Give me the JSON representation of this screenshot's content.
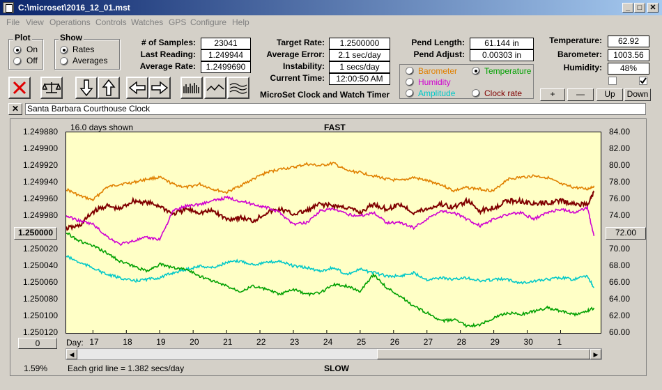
{
  "window": {
    "title": "C:\\microset\\2016_12_01.mst"
  },
  "menu": [
    "File",
    "View",
    "Operations",
    "Controls",
    "Watches",
    "GPS",
    "Configure",
    "Help"
  ],
  "plot_group": {
    "title": "Plot",
    "on": "On",
    "off": "Off",
    "selected": "On"
  },
  "show_group": {
    "title": "Show",
    "rates": "Rates",
    "averages": "Averages",
    "selected": "Rates"
  },
  "stats": {
    "samples_label": "# of Samples:",
    "samples": "23041",
    "last_label": "Last Reading:",
    "last": "1.249944",
    "avg_label": "Average Rate:",
    "avg": "1.2499690",
    "target_label": "Target Rate:",
    "target": "1.2500000",
    "avgerr_label": "Average Error:",
    "avgerr": "2.1 sec/day",
    "instab_label": "Instability:",
    "instab": "1 secs/day",
    "time_label": "Current Time:",
    "time": "12:00:50 AM",
    "pend_len_label": "Pend Length:",
    "pend_len": "61.144 in",
    "pend_adj_label": "Pend Adjust:",
    "pend_adj": "0.00303 in"
  },
  "app_caption": "MicroSet Clock and Watch Timer",
  "sensors": {
    "temp_label": "Temperature:",
    "temp": "62.92",
    "baro_label": "Barometer:",
    "baro": "1003.56",
    "hum_label": "Humidity:",
    "hum": "48%",
    "plus": "+",
    "minus": "—",
    "up": "Up",
    "down": "Down"
  },
  "secondary": {
    "barometer": "Barometer",
    "temperature": "Temperature",
    "humidity": "Humidity",
    "amplitude": "Amplitude",
    "clock_rate": "Clock rate",
    "selected": "Temperature",
    "colors": {
      "barometer": "#e08000",
      "temperature": "#00a000",
      "humidity": "#d000d0",
      "amplitude": "#00c8c8",
      "clock_rate": "#800000"
    }
  },
  "clock_name": "Santa Barbara Courthouse Clock",
  "close_x": "✕",
  "chart_top": {
    "days_shown": "16.0 days shown",
    "fast": "FAST",
    "slow": "SLOW"
  },
  "center_rate": "1.250000",
  "center_temp": "72.00",
  "left_button": "0",
  "status": {
    "pct": "1.59%",
    "grid": "Each grid line = 1.382 secs/day"
  },
  "chart_data": {
    "type": "line",
    "x_label": "Day:",
    "x_ticks": [
      "17",
      "18",
      "19",
      "20",
      "21",
      "22",
      "23",
      "24",
      "25",
      "26",
      "27",
      "28",
      "29",
      "30",
      "1"
    ],
    "x_range": [
      16.2,
      32.2
    ],
    "y_left_ticks": [
      "1.249880",
      "1.249900",
      "1.249920",
      "1.249940",
      "1.249960",
      "1.249980",
      "1.250000",
      "1.250020",
      "1.250040",
      "1.250060",
      "1.250080",
      "1.250100",
      "1.250120"
    ],
    "y_left_range": [
      1.24988,
      1.25012
    ],
    "y_left_inverted": true,
    "y_right_ticks": [
      "84.00",
      "82.00",
      "80.00",
      "78.00",
      "76.00",
      "74.00",
      "72.00",
      "70.00",
      "68.00",
      "66.00",
      "64.00",
      "62.00",
      "60.00"
    ],
    "y_right_range": [
      60,
      84
    ],
    "grid": false,
    "series": [
      {
        "key": "barometer",
        "color": "#e08000",
        "axis": "right",
        "x": [
          16.2,
          16.6,
          17.0,
          17.4,
          17.8,
          18.2,
          18.6,
          19.0,
          19.4,
          19.8,
          20.2,
          20.6,
          21.0,
          21.4,
          21.8,
          22.2,
          22.6,
          23.0,
          23.4,
          23.8,
          24.2,
          24.6,
          25.0,
          25.4,
          25.8,
          26.2,
          26.6,
          27.0,
          27.4,
          27.8,
          28.2,
          28.6,
          29.0,
          29.4,
          29.8,
          30.2,
          30.6,
          31.0,
          31.4,
          31.8,
          32.0
        ],
        "y": [
          77.2,
          76.4,
          75.9,
          77.4,
          77.8,
          78.0,
          78.4,
          78.6,
          77.8,
          77.4,
          77.8,
          77.2,
          76.8,
          77.6,
          78.4,
          79.2,
          79.6,
          79.8,
          80.2,
          80.0,
          80.3,
          79.4,
          79.2,
          78.8,
          78.4,
          78.2,
          78.6,
          78.2,
          77.8,
          77.0,
          77.4,
          77.2,
          77.0,
          78.4,
          78.6,
          78.8,
          78.6,
          77.8,
          77.4,
          77.2,
          77.6
        ]
      },
      {
        "key": "clock_rate",
        "color": "#800000",
        "axis": "left",
        "x": [
          16.2,
          16.6,
          17.0,
          17.4,
          17.8,
          18.2,
          18.6,
          19.0,
          19.4,
          19.8,
          20.2,
          20.6,
          21.0,
          21.4,
          21.8,
          22.2,
          22.6,
          23.0,
          23.4,
          23.8,
          24.2,
          24.6,
          25.0,
          25.4,
          25.8,
          26.2,
          26.6,
          27.0,
          27.4,
          27.8,
          28.2,
          28.6,
          29.0,
          29.4,
          29.8,
          30.2,
          30.6,
          31.0,
          31.4,
          31.8,
          32.0
        ],
        "y": [
          1.249995,
          1.249992,
          1.249975,
          1.249968,
          1.249972,
          1.249962,
          1.249964,
          1.249968,
          1.249978,
          1.249972,
          1.249976,
          1.249974,
          1.249984,
          1.249982,
          1.249986,
          1.249976,
          1.249972,
          1.249978,
          1.249974,
          1.249966,
          1.249968,
          1.24997,
          1.249976,
          1.249966,
          1.249972,
          1.249966,
          1.249976,
          1.249972,
          1.249966,
          1.24997,
          1.249962,
          1.249974,
          1.24997,
          1.249962,
          1.249962,
          1.249966,
          1.249964,
          1.249962,
          1.249966,
          1.249966,
          1.249952
        ]
      },
      {
        "key": "humidity",
        "color": "#d000d0",
        "axis": "right",
        "x": [
          16.2,
          16.6,
          17.0,
          17.4,
          17.8,
          18.2,
          18.6,
          19.0,
          19.4,
          19.8,
          20.2,
          20.6,
          21.0,
          21.4,
          21.8,
          22.2,
          22.6,
          23.0,
          23.4,
          23.8,
          24.2,
          24.6,
          25.0,
          25.4,
          25.8,
          26.2,
          26.6,
          27.0,
          27.4,
          27.8,
          28.2,
          28.6,
          29.0,
          29.4,
          29.8,
          30.2,
          30.6,
          31.0,
          31.4,
          31.8,
          32.0
        ],
        "y": [
          74.0,
          73.4,
          73.0,
          71.6,
          70.6,
          71.0,
          71.4,
          71.2,
          74.6,
          75.2,
          75.4,
          75.8,
          76.2,
          75.8,
          75.4,
          75.0,
          74.4,
          73.0,
          73.2,
          74.6,
          74.8,
          74.2,
          74.0,
          74.4,
          73.2,
          73.2,
          72.6,
          73.6,
          74.6,
          74.4,
          73.6,
          72.8,
          73.6,
          74.2,
          74.4,
          73.6,
          74.4,
          74.8,
          74.4,
          75.0,
          71.6
        ]
      },
      {
        "key": "amplitude",
        "color": "#00c8c8",
        "axis": "right",
        "x": [
          16.2,
          16.6,
          17.0,
          17.4,
          17.8,
          18.2,
          18.6,
          19.0,
          19.4,
          19.8,
          20.2,
          20.6,
          21.0,
          21.4,
          21.8,
          22.2,
          22.6,
          23.0,
          23.4,
          23.8,
          24.2,
          24.6,
          25.0,
          25.4,
          25.8,
          26.2,
          26.6,
          27.0,
          27.4,
          27.8,
          28.2,
          28.6,
          29.0,
          29.4,
          29.8,
          30.2,
          30.6,
          31.0,
          31.4,
          31.8,
          32.0
        ],
        "y": [
          69.2,
          68.4,
          67.8,
          67.0,
          66.6,
          66.2,
          66.4,
          66.6,
          67.2,
          67.6,
          68.0,
          67.8,
          68.4,
          68.6,
          68.2,
          68.4,
          68.6,
          68.0,
          67.8,
          67.4,
          67.8,
          67.0,
          67.6,
          67.2,
          66.8,
          66.8,
          67.2,
          66.4,
          66.6,
          66.4,
          66.6,
          66.2,
          66.4,
          66.4,
          66.0,
          66.2,
          66.4,
          66.6,
          66.4,
          66.8,
          65.4
        ]
      },
      {
        "key": "temperature",
        "color": "#00a000",
        "axis": "right",
        "x": [
          16.2,
          16.6,
          17.0,
          17.4,
          17.8,
          18.2,
          18.6,
          19.0,
          19.4,
          19.8,
          20.2,
          20.6,
          21.0,
          21.4,
          21.8,
          22.2,
          22.6,
          23.0,
          23.4,
          23.8,
          24.2,
          24.6,
          25.0,
          25.4,
          25.8,
          26.2,
          26.6,
          27.0,
          27.4,
          27.8,
          28.2,
          28.6,
          29.0,
          29.4,
          29.8,
          30.2,
          30.6,
          31.0,
          31.4,
          31.8,
          32.0
        ],
        "y": [
          72.0,
          71.0,
          70.4,
          69.6,
          68.6,
          68.0,
          67.4,
          68.2,
          67.8,
          67.6,
          66.8,
          66.2,
          65.6,
          65.0,
          65.6,
          65.2,
          64.6,
          65.2,
          64.6,
          64.8,
          65.8,
          65.6,
          65.0,
          67.0,
          65.4,
          64.4,
          63.2,
          62.4,
          61.4,
          61.6,
          60.8,
          61.0,
          61.8,
          62.4,
          62.2,
          62.6,
          63.0,
          62.6,
          62.2,
          62.6,
          63.0
        ]
      }
    ]
  }
}
